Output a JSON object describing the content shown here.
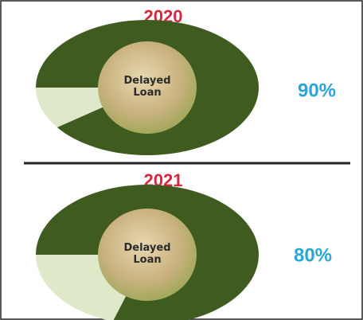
{
  "chart_data": [
    {
      "type": "pie",
      "title": "2020",
      "center_label": "Delayed Loan",
      "values": [
        90,
        10
      ],
      "value_labels": [
        "90%",
        null
      ],
      "colors": [
        "#3f5b1f",
        "#dfe9c9"
      ]
    },
    {
      "type": "pie",
      "title": "2021",
      "center_label": "Delayed Loan",
      "values": [
        80,
        20
      ],
      "value_labels": [
        "80%",
        null
      ],
      "colors": [
        "#3f5b1f",
        "#dfe9c9"
      ]
    }
  ]
}
